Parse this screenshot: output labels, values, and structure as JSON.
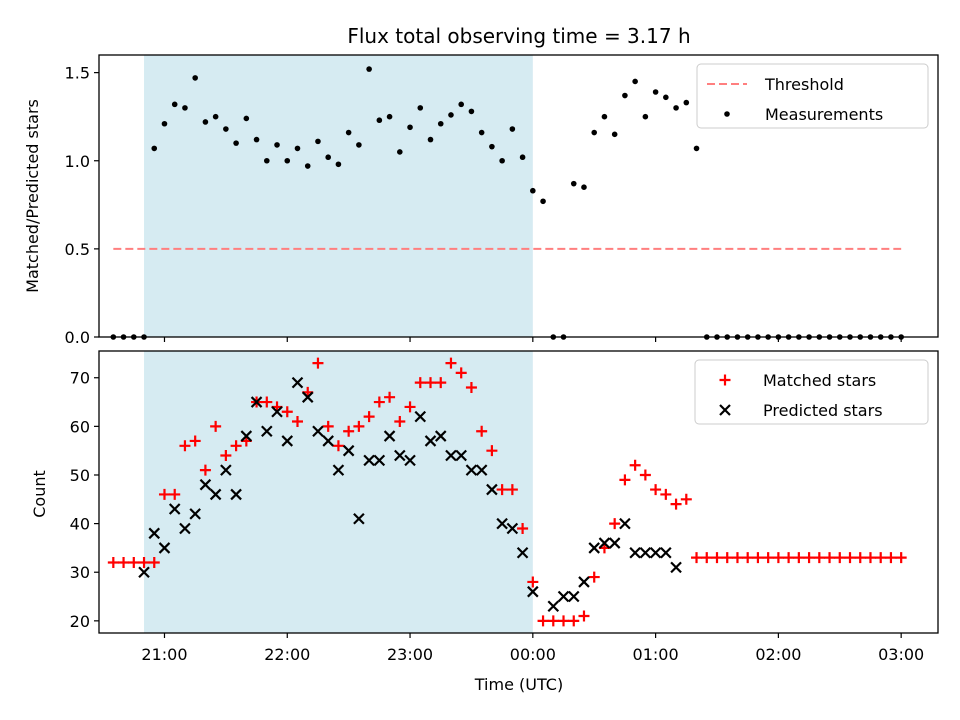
{
  "title": "Flux total observing time = 3.17 h",
  "xlabel": "Time (UTC)",
  "xticks": [
    "21:00",
    "22:00",
    "23:00",
    "00:00",
    "01:00",
    "02:00",
    "03:00"
  ],
  "colors": {
    "threshold": "#ff7f7f",
    "measurements": "#000000",
    "matched": "#ff0000",
    "predicted": "#000000",
    "shade": "#add8e6"
  },
  "chart_data": [
    {
      "type": "scatter",
      "ylabel": "Matched/Predicted stars",
      "xlim": [
        "20:28",
        "03:18"
      ],
      "ylim": [
        0,
        1.6
      ],
      "yticks": [
        "0.0",
        "0.5",
        "1.0",
        "1.5"
      ],
      "observing_window": [
        "20:50",
        "00:00"
      ],
      "legend": {
        "position": "top-right",
        "entries": [
          "Threshold",
          "Measurements"
        ]
      },
      "series": [
        {
          "name": "Threshold",
          "style": "dashed-line",
          "x": [
            "20:35",
            "03:00"
          ],
          "y": [
            0.5,
            0.5
          ]
        },
        {
          "name": "Measurements",
          "style": "dot",
          "x": [
            "20:35",
            "20:40",
            "20:45",
            "20:50",
            "20:55",
            "21:00",
            "21:05",
            "21:10",
            "21:15",
            "21:20",
            "21:25",
            "21:30",
            "21:35",
            "21:40",
            "21:45",
            "21:50",
            "21:55",
            "22:00",
            "22:05",
            "22:10",
            "22:15",
            "22:20",
            "22:25",
            "22:30",
            "22:35",
            "22:40",
            "22:45",
            "22:50",
            "22:55",
            "23:00",
            "23:05",
            "23:10",
            "23:15",
            "23:20",
            "23:25",
            "23:30",
            "23:35",
            "23:40",
            "23:45",
            "23:50",
            "23:55",
            "00:00",
            "00:05",
            "00:10",
            "00:15",
            "00:20",
            "00:25",
            "00:30",
            "00:35",
            "00:40",
            "00:45",
            "00:50",
            "00:55",
            "01:00",
            "01:05",
            "01:10",
            "01:15",
            "01:20",
            "01:25",
            "01:30",
            "01:35",
            "01:40",
            "01:45",
            "01:50",
            "01:55",
            "02:00",
            "02:05",
            "02:10",
            "02:15",
            "02:20",
            "02:25",
            "02:30",
            "02:35",
            "02:40",
            "02:45",
            "02:50",
            "02:55",
            "03:00"
          ],
          "y": [
            0,
            0,
            0,
            0,
            1.07,
            1.21,
            1.32,
            1.3,
            1.47,
            1.22,
            1.25,
            1.18,
            1.1,
            1.24,
            1.12,
            1.0,
            1.09,
            1.0,
            1.07,
            0.97,
            1.11,
            1.02,
            0.98,
            1.16,
            1.09,
            1.52,
            1.23,
            1.25,
            1.05,
            1.19,
            1.3,
            1.12,
            1.21,
            1.26,
            1.32,
            1.28,
            1.16,
            1.08,
            1.0,
            1.18,
            1.02,
            0.83,
            0.77,
            0,
            0,
            0.87,
            0.85,
            1.16,
            1.25,
            1.15,
            1.37,
            1.45,
            1.25,
            1.39,
            1.36,
            1.3,
            1.33,
            1.07,
            0,
            0,
            0,
            0,
            0,
            0,
            0,
            0,
            0,
            0,
            0,
            0,
            0,
            0,
            0,
            0,
            0,
            0,
            0,
            0
          ]
        }
      ]
    },
    {
      "type": "scatter",
      "ylabel": "Count",
      "xlim": [
        "20:28",
        "03:18"
      ],
      "ylim": [
        17.5,
        75.5
      ],
      "yticks": [
        "20",
        "30",
        "40",
        "50",
        "60",
        "70"
      ],
      "observing_window": [
        "20:50",
        "00:00"
      ],
      "legend": {
        "position": "top-right",
        "entries": [
          "Matched stars",
          "Predicted stars"
        ]
      },
      "series": [
        {
          "name": "Matched stars",
          "marker": "+",
          "x": [
            "20:35",
            "20:40",
            "20:45",
            "20:50",
            "20:55",
            "21:00",
            "21:05",
            "21:10",
            "21:15",
            "21:20",
            "21:25",
            "21:30",
            "21:35",
            "21:40",
            "21:45",
            "21:50",
            "21:55",
            "22:00",
            "22:05",
            "22:10",
            "22:15",
            "22:20",
            "22:25",
            "22:30",
            "22:35",
            "22:40",
            "22:45",
            "22:50",
            "22:55",
            "23:00",
            "23:05",
            "23:10",
            "23:15",
            "23:20",
            "23:25",
            "23:30",
            "23:35",
            "23:40",
            "23:45",
            "23:50",
            "23:55",
            "00:00",
            "00:05",
            "00:10",
            "00:15",
            "00:20",
            "00:25",
            "00:30",
            "00:35",
            "00:40",
            "00:45",
            "00:50",
            "00:55",
            "01:00",
            "01:05",
            "01:10",
            "01:15",
            "01:20",
            "01:25",
            "01:30",
            "01:35",
            "01:40",
            "01:45",
            "01:50",
            "01:55",
            "02:00",
            "02:05",
            "02:10",
            "02:15",
            "02:20",
            "02:25",
            "02:30",
            "02:35",
            "02:40",
            "02:45",
            "02:50",
            "02:55",
            "03:00"
          ],
          "y": [
            32,
            32,
            32,
            32,
            32,
            46,
            46,
            56,
            57,
            51,
            60,
            54,
            56,
            57,
            65,
            65,
            64,
            63,
            61,
            67,
            73,
            60,
            56,
            59,
            60,
            62,
            65,
            66,
            61,
            64,
            69,
            69,
            69,
            73,
            71,
            68,
            59,
            55,
            47,
            47,
            39,
            28,
            20,
            20,
            20,
            20,
            21,
            29,
            35,
            40,
            49,
            52,
            50,
            47,
            46,
            44,
            45,
            33,
            33,
            33,
            33,
            33,
            33,
            33,
            33,
            33,
            33,
            33,
            33,
            33,
            33,
            33,
            33,
            33,
            33,
            33,
            33,
            33
          ]
        },
        {
          "name": "Predicted stars",
          "marker": "x",
          "x": [
            "20:50",
            "20:55",
            "21:00",
            "21:05",
            "21:10",
            "21:15",
            "21:20",
            "21:25",
            "21:30",
            "21:35",
            "21:40",
            "21:45",
            "21:50",
            "21:55",
            "22:00",
            "22:05",
            "22:10",
            "22:15",
            "22:20",
            "22:25",
            "22:30",
            "22:35",
            "22:40",
            "22:45",
            "22:50",
            "22:55",
            "23:00",
            "23:05",
            "23:10",
            "23:15",
            "23:20",
            "23:25",
            "23:30",
            "23:35",
            "23:40",
            "23:45",
            "23:50",
            "23:55",
            "00:00",
            "00:05",
            "00:10",
            "00:15",
            "00:20",
            "00:25",
            "00:30",
            "00:35",
            "00:40",
            "00:45",
            "00:50",
            "00:55",
            "01:00",
            "01:05",
            "01:10",
            "01:15",
            "01:20"
          ],
          "y": [
            30,
            38,
            35,
            43,
            39,
            42,
            48,
            46,
            51,
            46,
            58,
            65,
            59,
            63,
            57,
            69,
            66,
            59,
            57,
            51,
            55,
            41,
            53,
            53,
            58,
            54,
            53,
            62,
            57,
            58,
            54,
            54,
            51,
            51,
            47,
            40,
            39,
            34,
            26,
            null,
            23,
            25,
            25,
            28,
            35,
            36,
            36,
            40,
            34,
            34,
            34,
            34,
            31,
            null,
            null
          ]
        }
      ]
    }
  ]
}
